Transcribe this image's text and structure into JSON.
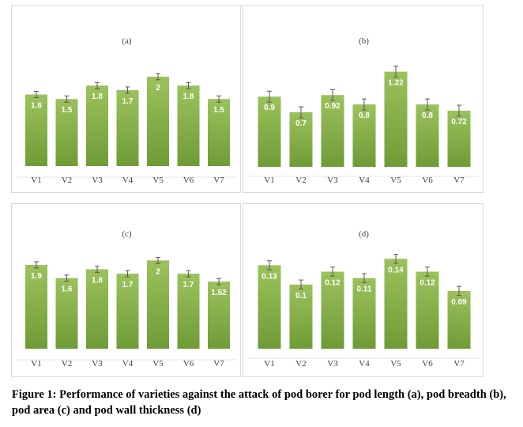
{
  "colors": {
    "bar_top": "#9bc25c",
    "bar_bottom": "#6f9b37",
    "error_bar": "#595959",
    "value_label": "#ffffff",
    "axis_text": "#404040"
  },
  "chart_data": [
    {
      "type": "bar",
      "title": "(a)",
      "categories": [
        "V1",
        "V2",
        "V3",
        "V4",
        "V5",
        "V6",
        "V7"
      ],
      "values": [
        1.6,
        1.5,
        1.8,
        1.7,
        2,
        1.8,
        1.5
      ],
      "labels": [
        "1.6",
        "1.5",
        "1.8",
        "1.7",
        "2",
        "1.8",
        "1.5"
      ],
      "error": [
        0.07,
        0.07,
        0.07,
        0.07,
        0.07,
        0.07,
        0.07
      ],
      "ylim": [
        0,
        2.6
      ],
      "grid": false,
      "legend": "none"
    },
    {
      "type": "bar",
      "title": "(b)",
      "categories": [
        "V1",
        "V2",
        "V3",
        "V4",
        "V5",
        "V6",
        "V7"
      ],
      "values": [
        0.9,
        0.7,
        0.92,
        0.8,
        1.22,
        0.8,
        0.72
      ],
      "labels": [
        "0.9",
        "0.7",
        "0.92",
        "0.8",
        "1.22",
        "0.8",
        "0.72"
      ],
      "error": [
        0.07,
        0.07,
        0.07,
        0.07,
        0.07,
        0.07,
        0.07
      ],
      "ylim": [
        0,
        1.5
      ],
      "grid": false,
      "legend": "none"
    },
    {
      "type": "bar",
      "title": "(c)",
      "categories": [
        "V1",
        "V2",
        "V3",
        "V4",
        "V5",
        "V6",
        "V7"
      ],
      "values": [
        1.9,
        1.6,
        1.8,
        1.7,
        2,
        1.7,
        1.52
      ],
      "labels": [
        "1.9",
        "1.6",
        "1.8",
        "1.7",
        "2",
        "1.7",
        "1.52"
      ],
      "error": [
        0.07,
        0.07,
        0.07,
        0.07,
        0.07,
        0.07,
        0.07
      ],
      "ylim": [
        0,
        2.4
      ],
      "grid": false,
      "legend": "none"
    },
    {
      "type": "bar",
      "title": "(d)",
      "categories": [
        "V1",
        "V2",
        "V3",
        "V4",
        "V5",
        "V6",
        "V7"
      ],
      "values": [
        0.13,
        0.1,
        0.12,
        0.11,
        0.14,
        0.12,
        0.09
      ],
      "labels": [
        "0.13",
        "0.1",
        "0.12",
        "0.11",
        "0.14",
        "0.12",
        "0.09"
      ],
      "error": [
        0.007,
        0.007,
        0.007,
        0.007,
        0.007,
        0.007,
        0.007
      ],
      "ylim": [
        0,
        0.165
      ],
      "grid": false,
      "legend": "none"
    }
  ],
  "caption": "Figure 1: Performance of varieties against the attack of pod borer for pod length (a), pod breadth (b), pod area (c) and pod wall thickness (d)"
}
